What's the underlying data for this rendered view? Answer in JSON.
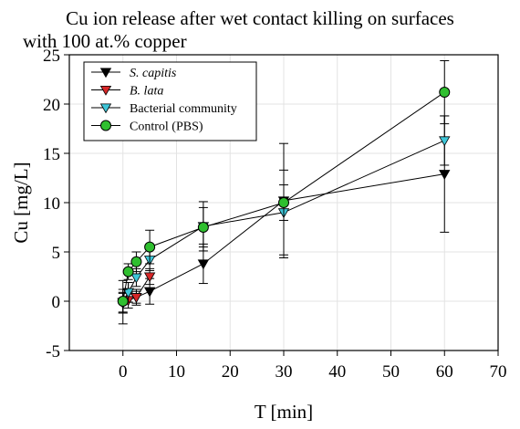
{
  "chart_data": {
    "type": "scatter",
    "title_lines": [
      "Cu ion release after wet contact killing on surfaces",
      "with 100 at.% copper"
    ],
    "xlabel": "T [min]",
    "ylabel": "Cu [mg/L]",
    "xlim": [
      -10,
      70
    ],
    "ylim": [
      -5,
      25
    ],
    "xticks": [
      0,
      10,
      20,
      30,
      40,
      50,
      60,
      70
    ],
    "yticks": [
      -5,
      0,
      5,
      10,
      15,
      20,
      25
    ],
    "xtick_labels": [
      "0",
      "10",
      "20",
      "30",
      "40",
      "50",
      "60",
      "70"
    ],
    "ytick_labels": [
      "-5",
      "0",
      "5",
      "10",
      "15",
      "20",
      "25"
    ],
    "grid": true,
    "legend_position": "top-left",
    "series": [
      {
        "name": "S. capitis",
        "italic": true,
        "marker": "triangle-down",
        "color": "#000000",
        "points": [
          {
            "x": 0,
            "y": -0.1,
            "err": 2.2
          },
          {
            "x": 1,
            "y": 0.9,
            "err": 1.0
          },
          {
            "x": 2.5,
            "y": 0.4,
            "err": 0.8
          },
          {
            "x": 5,
            "y": 1.0,
            "err": 1.3
          },
          {
            "x": 15,
            "y": 3.8,
            "err": 2.0
          },
          {
            "x": 30,
            "y": 10.2,
            "err": 5.8
          },
          {
            "x": 60,
            "y": 12.9,
            "err": 5.9
          }
        ]
      },
      {
        "name": "B. lata",
        "italic": true,
        "marker": "triangle-down",
        "color": "#d62728",
        "points": [
          {
            "x": 0,
            "y": -0.2,
            "err": 1.0
          },
          {
            "x": 1,
            "y": 0.1,
            "err": 0.8
          },
          {
            "x": 2.5,
            "y": 0.4,
            "err": 0.6
          },
          {
            "x": 5,
            "y": 2.5,
            "err": 0.8
          }
        ]
      },
      {
        "name": "Bacterial community",
        "italic": false,
        "marker": "triangle-down",
        "color": "#3ec6d8",
        "points": [
          {
            "x": 0,
            "y": -0.1,
            "err": 1.0
          },
          {
            "x": 1,
            "y": 0.9,
            "err": 1.0
          },
          {
            "x": 2.5,
            "y": 2.4,
            "err": 0.9
          },
          {
            "x": 5,
            "y": 4.2,
            "err": 1.1
          },
          {
            "x": 15,
            "y": 7.6,
            "err": 2.5
          },
          {
            "x": 30,
            "y": 9.0,
            "err": 4.3
          },
          {
            "x": 60,
            "y": 16.3,
            "err": 2.5
          }
        ]
      },
      {
        "name": "Control (PBS)",
        "italic": false,
        "marker": "circle",
        "color": "#2fbf2f",
        "points": [
          {
            "x": 0,
            "y": 0.0,
            "err": 1.2
          },
          {
            "x": 1,
            "y": 3.0,
            "err": 0.8
          },
          {
            "x": 2.5,
            "y": 4.0,
            "err": 1.0
          },
          {
            "x": 5,
            "y": 5.5,
            "err": 1.7
          },
          {
            "x": 15,
            "y": 7.5,
            "err": 2.0
          },
          {
            "x": 30,
            "y": 10.0,
            "err": 1.8
          },
          {
            "x": 60,
            "y": 21.2,
            "err": 3.2
          }
        ]
      }
    ]
  }
}
